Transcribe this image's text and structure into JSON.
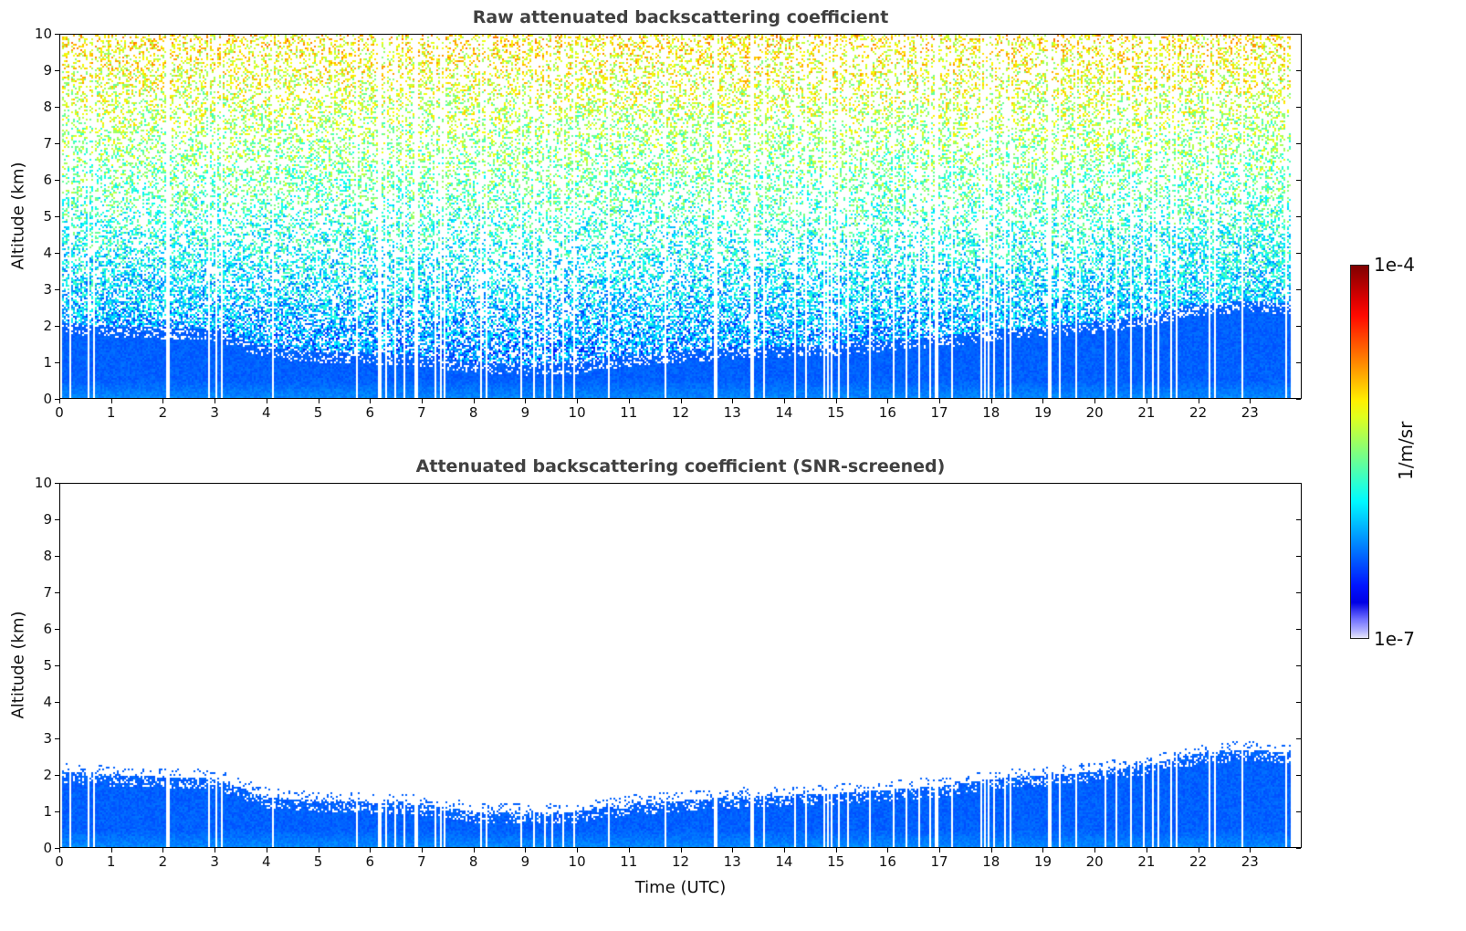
{
  "chart_data": [
    {
      "type": "heatmap",
      "title": "Raw attenuated backscattering coefficient",
      "xlabel": "",
      "ylabel": "Altitude (km)",
      "xlim": [
        0,
        24
      ],
      "ylim": [
        0,
        10
      ],
      "data_end_hour": 23.8,
      "xticks": [
        "0",
        "1",
        "2",
        "3",
        "4",
        "5",
        "6",
        "7",
        "8",
        "9",
        "10",
        "11",
        "12",
        "13",
        "14",
        "15",
        "16",
        "17",
        "18",
        "19",
        "20",
        "21",
        "22",
        "23"
      ],
      "yticks": [
        "0",
        "1",
        "2",
        "3",
        "4",
        "5",
        "6",
        "7",
        "8",
        "9",
        "10"
      ],
      "screened": false
    },
    {
      "type": "heatmap",
      "title": "Attenuated backscattering coefficient (SNR-screened)",
      "xlabel": "Time (UTC)",
      "ylabel": "Altitude (km)",
      "xlim": [
        0,
        24
      ],
      "ylim": [
        0,
        10
      ],
      "data_end_hour": 23.8,
      "xticks": [
        "0",
        "1",
        "2",
        "3",
        "4",
        "5",
        "6",
        "7",
        "8",
        "9",
        "10",
        "11",
        "12",
        "13",
        "14",
        "15",
        "16",
        "17",
        "18",
        "19",
        "20",
        "21",
        "22",
        "23"
      ],
      "yticks": [
        "0",
        "1",
        "2",
        "3",
        "4",
        "5",
        "6",
        "7",
        "8",
        "9",
        "10"
      ],
      "screened": true
    }
  ],
  "boundary_layer_top_km_by_hour": [
    2.1,
    2.0,
    1.95,
    1.9,
    1.4,
    1.3,
    1.25,
    1.2,
    1.0,
    0.95,
    1.0,
    1.2,
    1.3,
    1.4,
    1.45,
    1.5,
    1.6,
    1.7,
    1.9,
    2.0,
    2.1,
    2.3,
    2.6,
    2.7,
    2.6
  ],
  "colorbar": {
    "label": "1/m/sr",
    "min_label": "1e-7",
    "max_label": "1e-4",
    "scale": "log",
    "colormap": "jet"
  }
}
